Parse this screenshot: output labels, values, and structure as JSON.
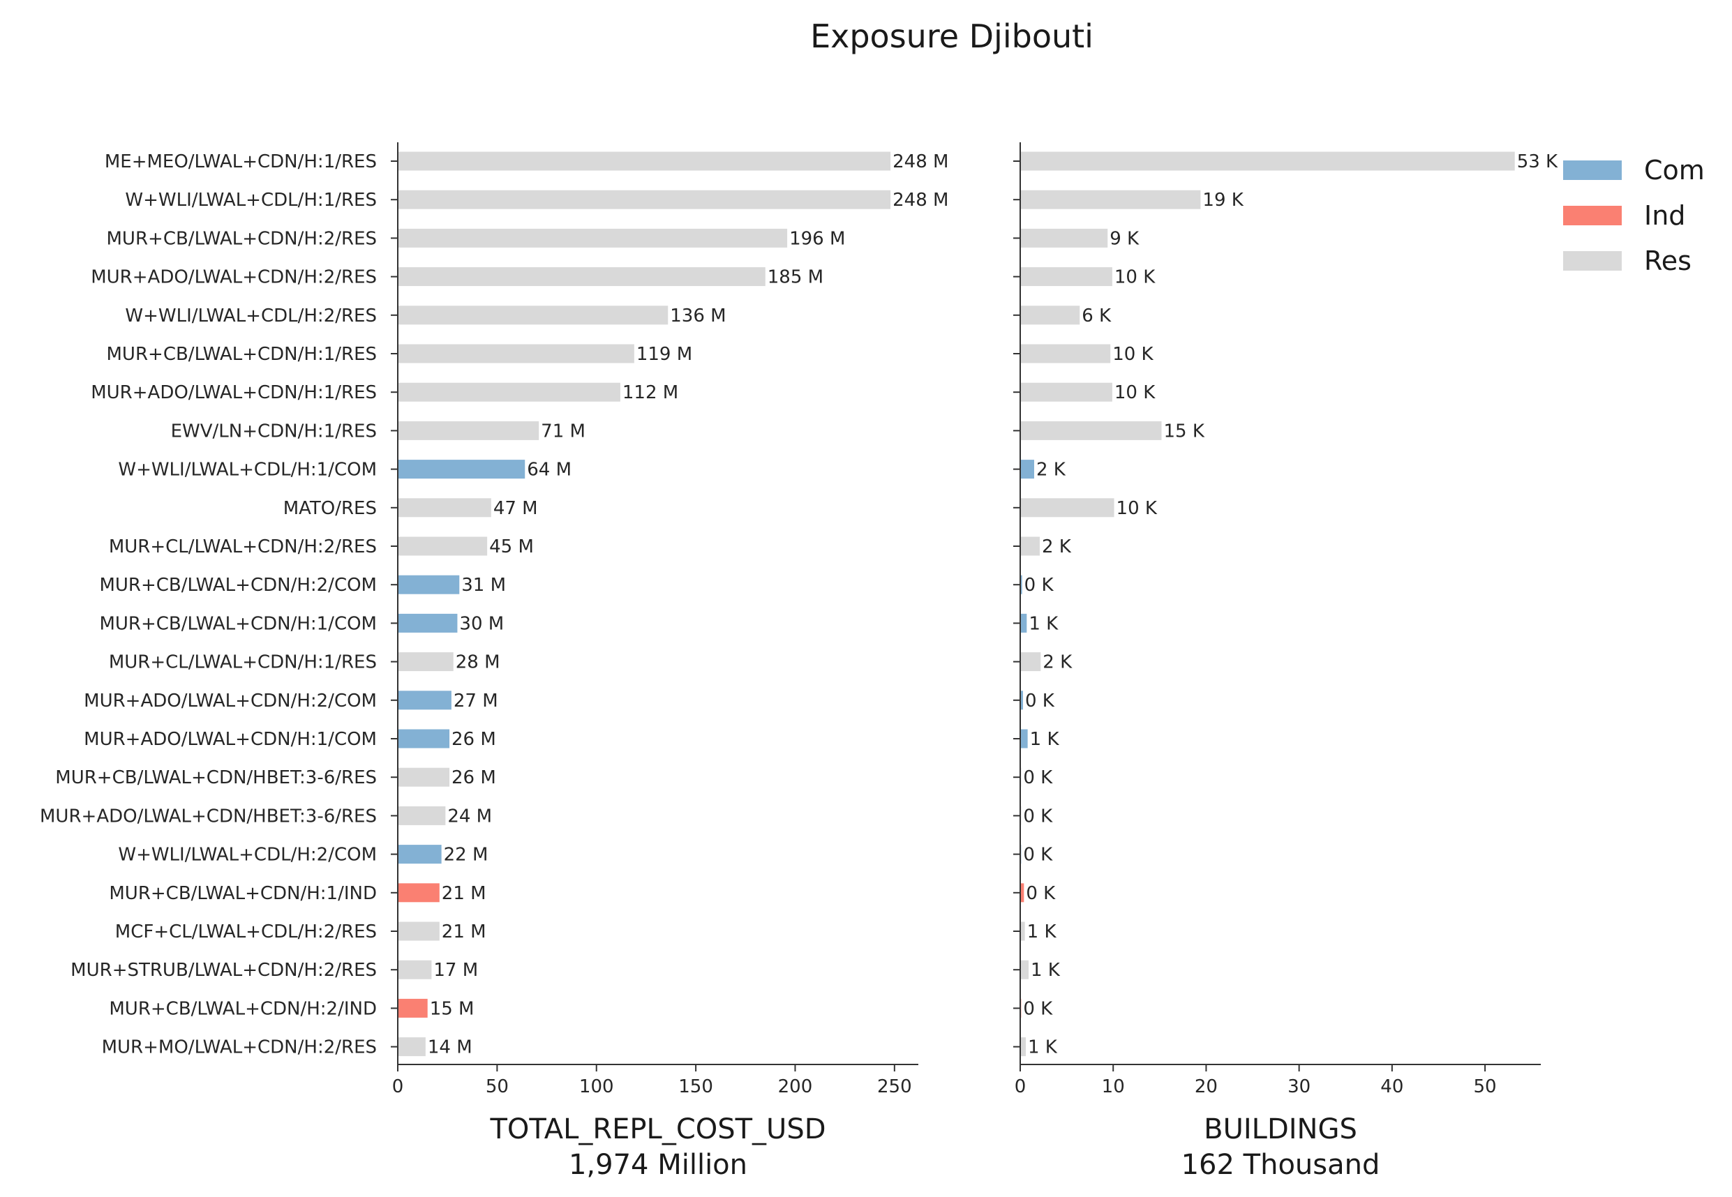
{
  "colors": {
    "Com": "#83b1d4",
    "Ind": "#fa8072",
    "Res": "#d9d9d9"
  },
  "chart_data": {
    "type": "bar",
    "orientation": "horizontal",
    "title": "Exposure Djibouti",
    "categories": [
      "ME+MEO/LWAL+CDN/H:1/RES",
      "W+WLI/LWAL+CDL/H:1/RES",
      "MUR+CB/LWAL+CDN/H:2/RES",
      "MUR+ADO/LWAL+CDN/H:2/RES",
      "W+WLI/LWAL+CDL/H:2/RES",
      "MUR+CB/LWAL+CDN/H:1/RES",
      "MUR+ADO/LWAL+CDN/H:1/RES",
      "EWV/LN+CDN/H:1/RES",
      "W+WLI/LWAL+CDL/H:1/COM",
      "MATO/RES",
      "MUR+CL/LWAL+CDN/H:2/RES",
      "MUR+CB/LWAL+CDN/H:2/COM",
      "MUR+CB/LWAL+CDN/H:1/COM",
      "MUR+CL/LWAL+CDN/H:1/RES",
      "MUR+ADO/LWAL+CDN/H:2/COM",
      "MUR+ADO/LWAL+CDN/H:1/COM",
      "MUR+CB/LWAL+CDN/HBET:3-6/RES",
      "MUR+ADO/LWAL+CDN/HBET:3-6/RES",
      "W+WLI/LWAL+CDL/H:2/COM",
      "MUR+CB/LWAL+CDN/H:1/IND",
      "MCF+CL/LWAL+CDL/H:2/RES",
      "MUR+STRUB/LWAL+CDN/H:2/RES",
      "MUR+CB/LWAL+CDN/H:2/IND",
      "MUR+MO/LWAL+CDN/H:2/RES"
    ],
    "occupancy": [
      "Res",
      "Res",
      "Res",
      "Res",
      "Res",
      "Res",
      "Res",
      "Res",
      "Com",
      "Res",
      "Res",
      "Com",
      "Com",
      "Res",
      "Com",
      "Com",
      "Res",
      "Res",
      "Com",
      "Ind",
      "Res",
      "Res",
      "Ind",
      "Res"
    ],
    "legend": {
      "position": "top-right",
      "entries": [
        "Com",
        "Ind",
        "Res"
      ]
    },
    "panels": [
      {
        "xlabel": "TOTAL_REPL_COST_USD",
        "subtitle": "1,974 Million",
        "xlim": [
          0,
          262
        ],
        "xticks": [
          0,
          50,
          100,
          150,
          200,
          250
        ],
        "values": [
          248,
          248,
          196,
          185,
          136,
          119,
          112,
          71,
          64,
          47,
          45,
          31,
          30,
          28,
          27,
          26,
          26,
          24,
          22,
          21,
          21,
          17,
          15,
          14
        ],
        "labels": [
          "248 M",
          "248 M",
          "196 M",
          "185 M",
          "136 M",
          "119 M",
          "112 M",
          "71 M",
          "64 M",
          "47 M",
          "45 M",
          "31 M",
          "30 M",
          "28 M",
          "27 M",
          "26 M",
          "26 M",
          "24 M",
          "22 M",
          "21 M",
          "21 M",
          "17 M",
          "15 M",
          "14 M"
        ]
      },
      {
        "xlabel": "BUILDINGS",
        "subtitle": "162 Thousand",
        "xlim": [
          0,
          56
        ],
        "xticks": [
          0,
          10,
          20,
          30,
          40,
          50
        ],
        "values": [
          53.2,
          19.4,
          9.4,
          9.9,
          6.4,
          9.7,
          9.9,
          15.2,
          1.5,
          10.1,
          2.1,
          0.2,
          0.7,
          2.2,
          0.3,
          0.8,
          0.1,
          0.1,
          0.1,
          0.4,
          0.5,
          0.9,
          0.1,
          0.6
        ],
        "labels": [
          "53 K",
          "19 K",
          "9 K",
          "10 K",
          "6 K",
          "10 K",
          "10 K",
          "15 K",
          "2 K",
          "10 K",
          "2 K",
          "0 K",
          "1 K",
          "2 K",
          "0 K",
          "1 K",
          "0 K",
          "0 K",
          "0 K",
          "0 K",
          "1 K",
          "1 K",
          "0 K",
          "1 K"
        ]
      }
    ]
  }
}
